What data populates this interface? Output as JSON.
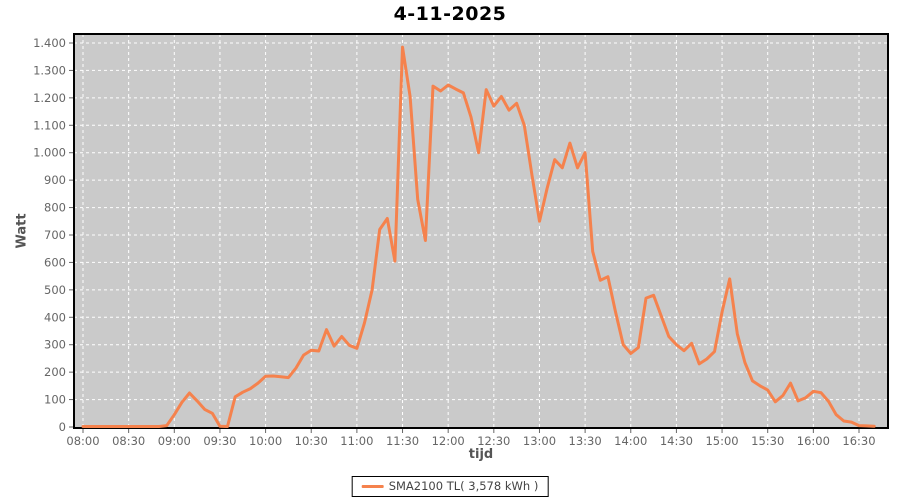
{
  "page": {
    "title": "4-11-2025"
  },
  "chart_data": {
    "type": "line",
    "title": "4-11-2025",
    "xlabel": "tijd",
    "ylabel": "Watt",
    "ylim": [
      0,
      1400
    ],
    "grid": true,
    "legend_position": "bottom",
    "plot_background": "#CACACA",
    "gridline_color": "#FFFFFF",
    "axis_text_color": "#666666",
    "y_tick_values": [
      0,
      100,
      200,
      300,
      400,
      500,
      600,
      700,
      800,
      900,
      1000,
      1100,
      1200,
      1300,
      1400
    ],
    "y_tick_labels": [
      "0",
      "100",
      "200",
      "300",
      "400",
      "500",
      "600",
      "700",
      "800",
      "900",
      "1.000",
      "1.100",
      "1.200",
      "1.300",
      "1.400"
    ],
    "x_tick_minutes": [
      480,
      510,
      540,
      570,
      600,
      630,
      660,
      690,
      720,
      750,
      780,
      810,
      840,
      870,
      900,
      930,
      960,
      990
    ],
    "x_tick_labels": [
      "08:00",
      "08:30",
      "09:00",
      "09:30",
      "10:00",
      "10:30",
      "11:00",
      "11:30",
      "12:00",
      "12:30",
      "13:00",
      "13:30",
      "14:00",
      "14:30",
      "15:00",
      "15:30",
      "16:00",
      "16:30"
    ],
    "series": [
      {
        "name": "SMA2100 TL( 3,578 kWh )",
        "color": "#F5824D",
        "unit": "Watt",
        "start_time": "08:00",
        "interval_minutes": 5,
        "values": [
          2,
          2,
          2,
          2,
          2,
          2,
          2,
          2,
          2,
          2,
          2,
          5,
          45,
          90,
          124,
          95,
          64,
          50,
          3,
          2,
          110,
          127,
          140,
          160,
          185,
          186,
          183,
          180,
          215,
          262,
          280,
          277,
          355,
          295,
          330,
          298,
          287,
          380,
          500,
          720,
          760,
          605,
          1385,
          1205,
          830,
          680,
          1243,
          1225,
          1247,
          1232,
          1218,
          1130,
          1000,
          1230,
          1170,
          1205,
          1155,
          1180,
          1100,
          920,
          750,
          870,
          975,
          945,
          1035,
          945,
          1000,
          640,
          535,
          548,
          420,
          300,
          268,
          290,
          470,
          480,
          405,
          330,
          300,
          278,
          305,
          230,
          248,
          275,
          420,
          540,
          340,
          235,
          168,
          150,
          135,
          92,
          115,
          160,
          95,
          107,
          130,
          125,
          93,
          45,
          22,
          18,
          5,
          4,
          3
        ]
      }
    ]
  }
}
